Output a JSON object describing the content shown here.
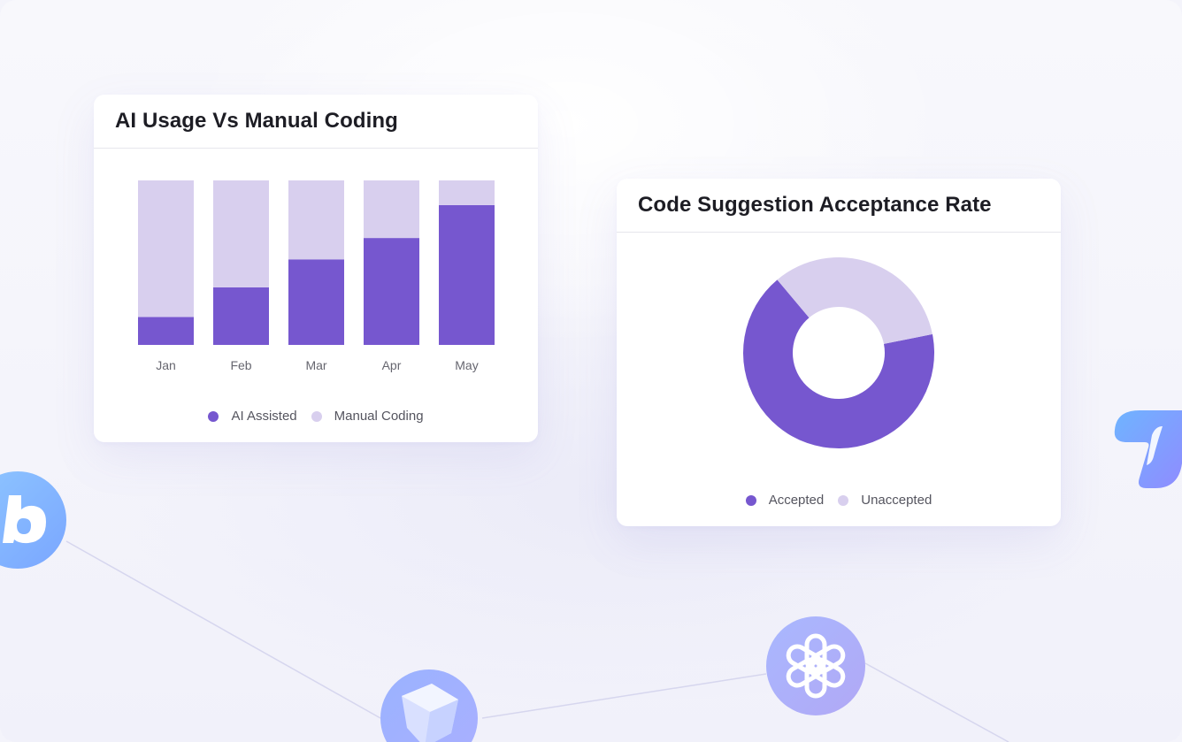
{
  "colors": {
    "primary": "#7657cf",
    "secondary": "#d8cfee"
  },
  "bar_card": {
    "title": "AI Usage Vs Manual Coding",
    "legend": [
      "AI Assisted",
      "Manual Coding"
    ]
  },
  "donut_card": {
    "title": "Code Suggestion Acceptance Rate",
    "legend": [
      "Accepted",
      "Unaccepted"
    ]
  },
  "chart_data": [
    {
      "type": "bar",
      "stacked": true,
      "title": "AI Usage Vs Manual Coding",
      "categories": [
        "Jan",
        "Feb",
        "Mar",
        "Apr",
        "May"
      ],
      "series": [
        {
          "name": "AI Assisted",
          "values": [
            17,
            35,
            52,
            65,
            85
          ],
          "color": "#7657cf"
        },
        {
          "name": "Manual Coding",
          "values": [
            83,
            65,
            48,
            35,
            15
          ],
          "color": "#d8cfee"
        }
      ],
      "ylim": [
        0,
        100
      ],
      "grid": false,
      "legend_position": "bottom"
    },
    {
      "type": "pie",
      "donut": true,
      "title": "Code Suggestion Acceptance Rate",
      "slices": [
        {
          "label": "Accepted",
          "value": 67,
          "color": "#7657cf"
        },
        {
          "label": "Unaccepted",
          "value": 33,
          "color": "#d8cfee"
        }
      ],
      "legend_position": "bottom"
    }
  ],
  "decor_icons": [
    "bubble-b-logo-icon",
    "cube-logo-icon",
    "openai-logo-icon",
    "copilot-logo-icon"
  ]
}
